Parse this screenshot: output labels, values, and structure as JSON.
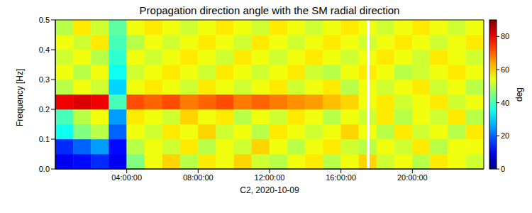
{
  "chart_data": {
    "type": "heatmap",
    "title": "Propagation direction angle with the SM radial direction",
    "x_label": "C2, 2020-10-09",
    "y_label": "Frequency [Hz]",
    "xlim": [
      0,
      24
    ],
    "ylim": [
      0,
      0.5
    ],
    "xticks": [
      {
        "value": 4,
        "label": "04:00:00"
      },
      {
        "value": 8,
        "label": "08:00:00"
      },
      {
        "value": 12,
        "label": "12:00:00"
      },
      {
        "value": 16,
        "label": "16:00:00"
      },
      {
        "value": 20,
        "label": "20:00:00"
      }
    ],
    "yticks": [
      {
        "value": 0,
        "label": "0.0"
      },
      {
        "value": 0.1,
        "label": "0.1"
      },
      {
        "value": 0.2,
        "label": "0.2"
      },
      {
        "value": 0.3,
        "label": "0.3"
      },
      {
        "value": 0.4,
        "label": "0.4"
      },
      {
        "value": 0.5,
        "label": "0.5"
      }
    ],
    "x_edges": [
      0,
      1,
      2,
      3,
      4,
      5,
      6,
      7,
      8,
      9,
      10,
      11,
      12,
      13,
      14,
      15,
      16,
      17,
      18,
      19,
      20,
      21,
      22,
      23,
      24
    ],
    "y_edges": [
      0,
      0.05,
      0.1,
      0.15,
      0.2,
      0.25,
      0.3,
      0.35,
      0.4,
      0.45,
      0.5
    ],
    "cells": [
      [
        10,
        12,
        15,
        10,
        45,
        55,
        60,
        50,
        58,
        55,
        60,
        52,
        50,
        55,
        58,
        50,
        55,
        60,
        52,
        55,
        50,
        58,
        55,
        52
      ],
      [
        15,
        20,
        25,
        12,
        50,
        55,
        52,
        58,
        50,
        55,
        52,
        60,
        55,
        50,
        55,
        58,
        52,
        50,
        55,
        52,
        58,
        50,
        55,
        55
      ],
      [
        35,
        45,
        50,
        20,
        55,
        52,
        58,
        55,
        60,
        52,
        55,
        50,
        58,
        55,
        52,
        55,
        60,
        55,
        50,
        58,
        52,
        55,
        50,
        58
      ],
      [
        40,
        50,
        55,
        25,
        58,
        55,
        52,
        60,
        55,
        58,
        50,
        55,
        52,
        58,
        55,
        50,
        55,
        52,
        58,
        50,
        55,
        52,
        58,
        50
      ],
      [
        80,
        82,
        80,
        40,
        72,
        70,
        72,
        68,
        70,
        72,
        68,
        70,
        68,
        66,
        65,
        62,
        60,
        55,
        58,
        52,
        55,
        58,
        52,
        55
      ],
      [
        50,
        55,
        52,
        30,
        55,
        58,
        55,
        52,
        58,
        55,
        52,
        55,
        58,
        52,
        55,
        58,
        50,
        55,
        52,
        55,
        58,
        52,
        55,
        50
      ],
      [
        55,
        50,
        55,
        35,
        52,
        55,
        58,
        55,
        52,
        58,
        55,
        52,
        55,
        58,
        52,
        50,
        55,
        58,
        55,
        50,
        52,
        55,
        58,
        55
      ],
      [
        52,
        55,
        50,
        38,
        55,
        52,
        55,
        58,
        55,
        52,
        58,
        55,
        52,
        55,
        58,
        55,
        52,
        55,
        58,
        55,
        52,
        58,
        55,
        52
      ],
      [
        55,
        52,
        58,
        40,
        50,
        55,
        52,
        55,
        58,
        55,
        52,
        58,
        55,
        52,
        55,
        58,
        55,
        52,
        55,
        58,
        55,
        52,
        55,
        58
      ],
      [
        50,
        58,
        52,
        42,
        55,
        58,
        55,
        52,
        55,
        58,
        55,
        52,
        58,
        55,
        52,
        55,
        58,
        55,
        52,
        55,
        58,
        55,
        52,
        55
      ]
    ],
    "gap": [
      17.45,
      17.6
    ],
    "colorbar_label": "deg",
    "colorbar_range": [
      0,
      90
    ],
    "colorbar_ticks": [
      0,
      20,
      40,
      60,
      80
    ]
  }
}
